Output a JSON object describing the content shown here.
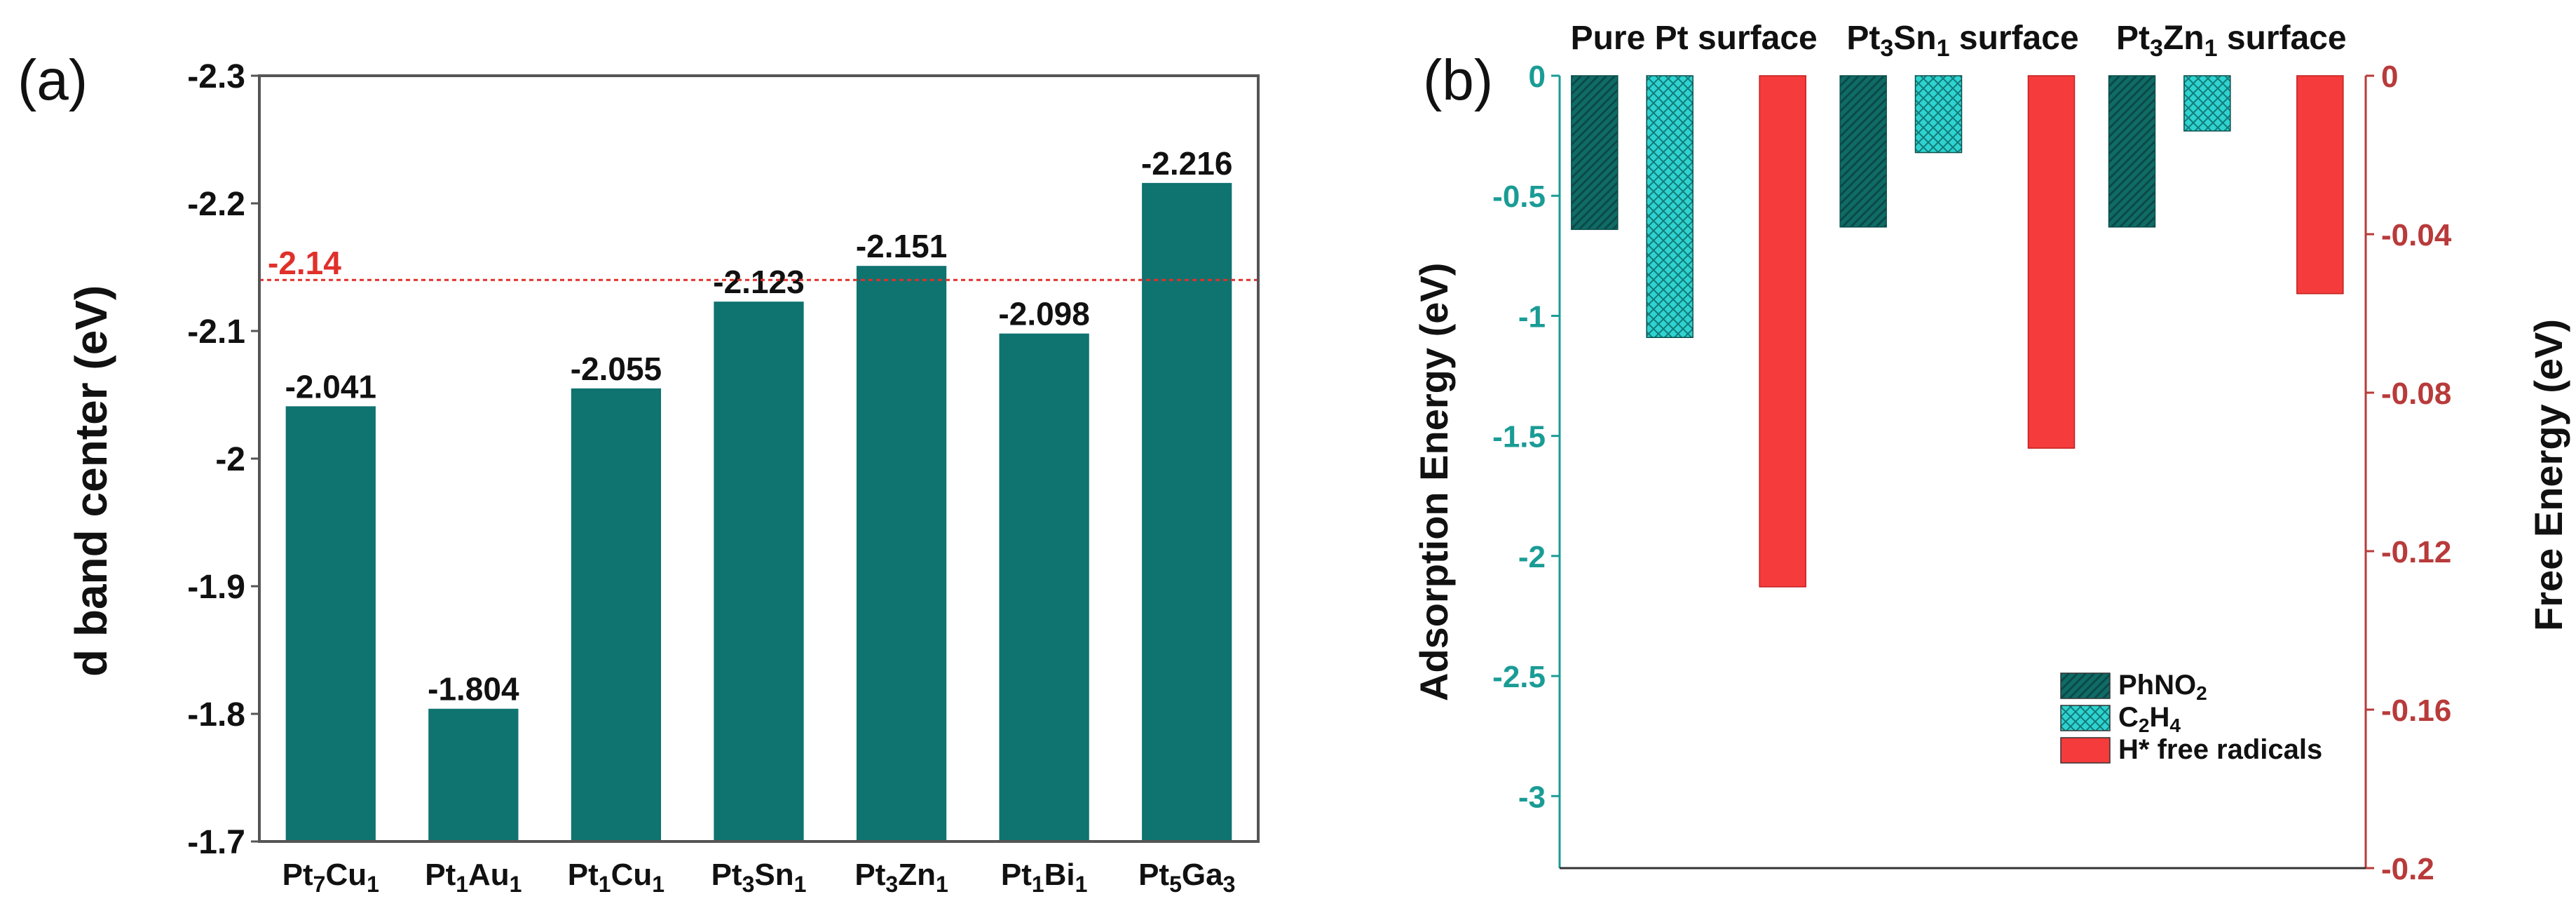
{
  "chart_data": [
    {
      "panel": "(a)",
      "type": "bar",
      "title": "",
      "xlabel": "",
      "ylabel": "d band center (eV)",
      "ylim": [
        -1.7,
        -2.3
      ],
      "yticks": [
        "-1.7",
        "-1.8",
        "-1.9",
        "-2",
        "-2.1",
        "-2.2",
        "-2.3"
      ],
      "categories": [
        "Pt7Cu1",
        "Pt1Au1",
        "Pt1Cu1",
        "Pt3Sn1",
        "Pt3Zn1",
        "Pt1Bi1",
        "Pt5Ga3"
      ],
      "category_labels": [
        {
          "base": "Pt",
          "s1": "7",
          "mid": "Cu",
          "s2": "1"
        },
        {
          "base": "Pt",
          "s1": "1",
          "mid": "Au",
          "s2": "1"
        },
        {
          "base": "Pt",
          "s1": "1",
          "mid": "Cu",
          "s2": "1"
        },
        {
          "base": "Pt",
          "s1": "3",
          "mid": "Sn",
          "s2": "1"
        },
        {
          "base": "Pt",
          "s1": "3",
          "mid": "Zn",
          "s2": "1"
        },
        {
          "base": "Pt",
          "s1": "1",
          "mid": "Bi",
          "s2": "1"
        },
        {
          "base": "Pt",
          "s1": "5",
          "mid": "Ga",
          "s2": "3"
        }
      ],
      "values": [
        -2.041,
        -1.804,
        -2.055,
        -2.123,
        -2.151,
        -2.098,
        -2.216
      ],
      "value_labels": [
        "-2.041",
        "-1.804",
        "-2.055",
        "-2.123",
        "-2.151",
        "-2.098",
        "-2.216"
      ],
      "reference_line": {
        "value": -2.14,
        "label": "-2.14",
        "color": "#e0302a"
      },
      "bar_color": "#0f7370"
    },
    {
      "panel": "(b)",
      "type": "bar",
      "title": "",
      "ylabel_left": "Adsorption Energy (eV)",
      "ylabel_right": "Free Energy (eV)",
      "ylim_left": [
        0,
        -3.3
      ],
      "ylim_right": [
        0,
        -0.2
      ],
      "yticks_left": [
        "0",
        "-0.5",
        "-1",
        "-1.5",
        "-2",
        "-2.5",
        "-3"
      ],
      "yticks_right": [
        "0",
        "-0.04",
        "-0.08",
        "-0.12",
        "-0.16",
        "-0.2"
      ],
      "left_axis_color": "#1a9c95",
      "right_axis_color": "#b83a3a",
      "groups": [
        {
          "parts": [
            {
              "t": "Pure Pt surface",
              "sub": false
            }
          ]
        },
        {
          "parts": [
            {
              "t": "Pt",
              "sub": false
            },
            {
              "t": "3",
              "sub": true
            },
            {
              "t": "Sn",
              "sub": false
            },
            {
              "t": "1",
              "sub": true
            },
            {
              "t": " surface",
              "sub": false
            }
          ]
        },
        {
          "parts": [
            {
              "t": "Pt",
              "sub": false
            },
            {
              "t": "3",
              "sub": true
            },
            {
              "t": "Zn",
              "sub": false
            },
            {
              "t": "1",
              "sub": true
            },
            {
              "t": " surface",
              "sub": false
            }
          ]
        }
      ],
      "series": [
        {
          "name": "PhNO2",
          "axis": "left",
          "color": "#0f6b66",
          "pattern": "hatch",
          "values": [
            -0.64,
            -0.63,
            -0.63
          ]
        },
        {
          "name": "C2H4",
          "axis": "left",
          "color": "#2ed3d0",
          "pattern": "crosshatch",
          "values": [
            -1.09,
            -0.32,
            -0.23
          ]
        },
        {
          "name": "H* free radicals",
          "axis": "right",
          "color": "#f53b3b",
          "pattern": "solid",
          "values": [
            -0.129,
            -0.094,
            -0.055
          ]
        }
      ],
      "legend_labels": [
        {
          "parts": [
            {
              "t": "PhNO",
              "sub": false
            },
            {
              "t": "2",
              "sub": true
            }
          ]
        },
        {
          "parts": [
            {
              "t": "C",
              "sub": false
            },
            {
              "t": "2",
              "sub": true
            },
            {
              "t": "H",
              "sub": false
            },
            {
              "t": "4",
              "sub": true
            }
          ]
        },
        {
          "parts": [
            {
              "t": "H* free radicals",
              "sub": false
            }
          ]
        }
      ],
      "legend_position": "bottom-right"
    }
  ]
}
